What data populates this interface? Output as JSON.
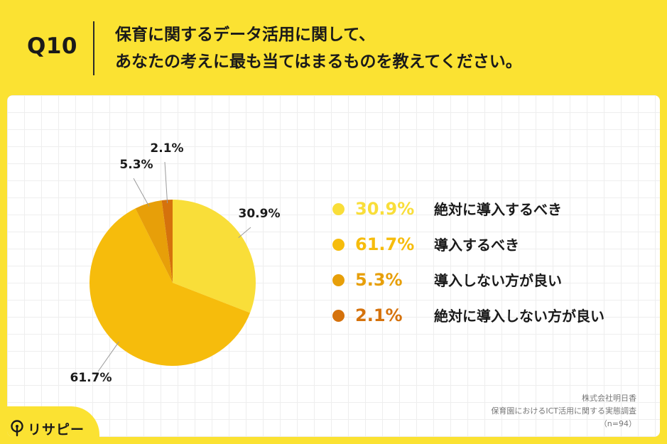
{
  "header": {
    "question_label": "Q10",
    "title_line1": "保育に関するデータ活用に関して、",
    "title_line2": "あなたの考えに最も当てはまるものを教えてください。"
  },
  "chart_data": {
    "type": "pie",
    "title": "",
    "slices": [
      {
        "label": "絶対に導入するべき",
        "value": 30.9,
        "value_label": "30.9%",
        "color": "#F9DE39"
      },
      {
        "label": "導入するべき",
        "value": 61.7,
        "value_label": "61.7%",
        "color": "#F6BC0C"
      },
      {
        "label": "導入しない方が良い",
        "value": 5.3,
        "value_label": "5.3%",
        "color": "#E79F09"
      },
      {
        "label": "絶対に導入しない方が良い",
        "value": 2.1,
        "value_label": "2.1%",
        "color": "#D5720C"
      }
    ],
    "legend_position": "right",
    "start": "top, clockwise"
  },
  "source": {
    "company": "株式会社明日香",
    "survey": "保育園におけるICT活用に関する実態調査",
    "sample": "（n=94）"
  },
  "logo": {
    "text": "リサピー",
    "icon": "lightbulb-icon"
  },
  "colors": {
    "background": "#FBE232",
    "panel": "#FFFFFF"
  }
}
